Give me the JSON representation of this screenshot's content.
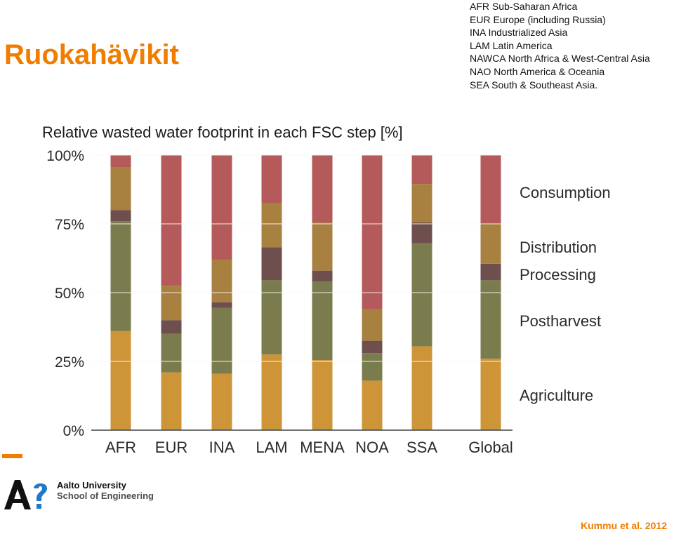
{
  "slide": {
    "title": "Ruokahävikit",
    "abbreviations": [
      "AFR Sub-Saharan Africa",
      "EUR Europe (including Russia)",
      "INA Industrialized Asia",
      "LAM Latin America",
      "NAWCA North Africa & West-Central Asia",
      "NAO North America & Oceania",
      "SEA South & Southeast Asia."
    ],
    "university_name": "Aalto University",
    "school_name": "School of Engineering",
    "citation": "Kummu et al. 2012"
  },
  "chart_data": {
    "type": "bar",
    "stacked": true,
    "title": "Relative wasted water footprint in each FSC step [%]",
    "xlabel": "",
    "ylabel": "",
    "ylim": [
      0,
      100
    ],
    "y_ticks": [
      "0%",
      "25%",
      "50%",
      "75%",
      "100%"
    ],
    "grid": true,
    "legend_position": "right",
    "categories": [
      "AFR",
      "EUR",
      "INA",
      "LAM",
      "MENA",
      "NOA",
      "SSA",
      "Global"
    ],
    "series": [
      {
        "name": "Agriculture",
        "color": "#ce9438",
        "values": [
          36,
          21,
          20.5,
          27.5,
          25.5,
          18,
          30.5,
          26
        ]
      },
      {
        "name": "Postharvest",
        "color": "#7b7c4e",
        "values": [
          40,
          14,
          24,
          27,
          28.5,
          10,
          37.5,
          28.5
        ]
      },
      {
        "name": "Processing",
        "color": "#6e4f4e",
        "values": [
          4,
          5,
          2,
          12,
          4,
          4.5,
          7.5,
          6
        ]
      },
      {
        "name": "Distribution",
        "color": "#a8803f",
        "values": [
          15.5,
          12.5,
          15.5,
          16,
          17.5,
          11.5,
          14,
          14.5
        ]
      },
      {
        "name": "Consumption",
        "color": "#b55a5a",
        "values": [
          4.5,
          47.5,
          38,
          17.5,
          24.5,
          56,
          10.5,
          25
        ]
      }
    ]
  }
}
